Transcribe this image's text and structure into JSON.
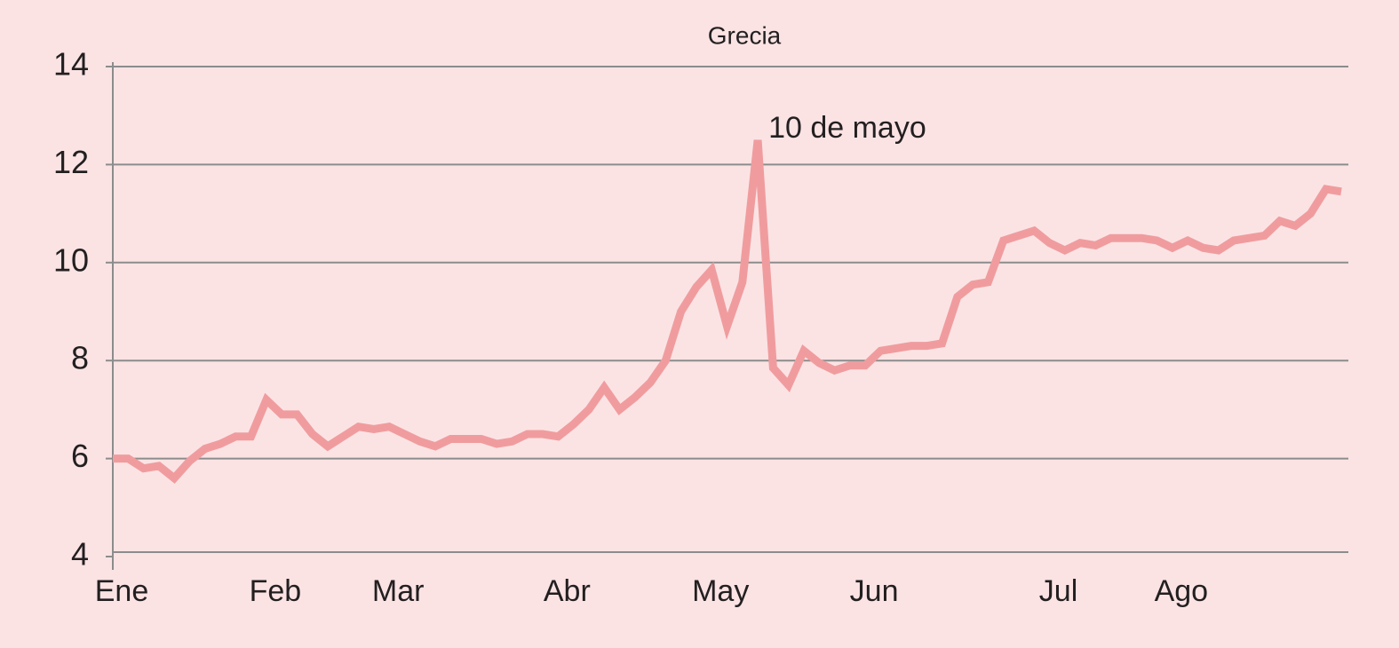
{
  "chart_data": {
    "type": "line",
    "title": "Grecia",
    "annotation": "10 de mayo",
    "categories": [
      "Ene",
      null,
      null,
      null,
      null,
      null,
      null,
      null,
      null,
      null,
      "Feb",
      null,
      null,
      null,
      null,
      null,
      null,
      null,
      "Mar",
      null,
      null,
      null,
      null,
      null,
      null,
      null,
      null,
      null,
      null,
      "Abr",
      null,
      null,
      null,
      null,
      null,
      null,
      null,
      null,
      null,
      "May",
      null,
      null,
      null,
      null,
      null,
      null,
      null,
      null,
      null,
      "Jun",
      null,
      null,
      null,
      null,
      null,
      null,
      null,
      null,
      null,
      null,
      null,
      "Jul",
      null,
      null,
      null,
      null,
      null,
      null,
      null,
      "Ago",
      null,
      null,
      null,
      null,
      null,
      null,
      null,
      null,
      null,
      null,
      null
    ],
    "series": [
      {
        "name": "Grecia",
        "color": "#f09c9e",
        "values": [
          6.0,
          6.0,
          5.8,
          5.85,
          5.6,
          5.95,
          6.2,
          6.3,
          6.45,
          6.45,
          7.2,
          6.9,
          6.9,
          6.5,
          6.25,
          6.45,
          6.65,
          6.6,
          6.65,
          6.5,
          6.35,
          6.25,
          6.4,
          6.4,
          6.4,
          6.3,
          6.35,
          6.5,
          6.5,
          6.45,
          6.7,
          7.0,
          7.45,
          7.0,
          7.25,
          7.55,
          8.0,
          9.0,
          9.5,
          9.85,
          8.7,
          9.6,
          12.5,
          7.85,
          7.5,
          8.2,
          7.95,
          7.8,
          7.9,
          7.9,
          8.2,
          8.25,
          8.3,
          8.3,
          8.35,
          9.3,
          9.55,
          9.6,
          10.45,
          10.55,
          10.65,
          10.4,
          10.25,
          10.4,
          10.35,
          10.5,
          10.5,
          10.5,
          10.45,
          10.3,
          10.45,
          10.3,
          10.25,
          10.45,
          10.5,
          10.55,
          10.85,
          10.75,
          11.0,
          11.5,
          11.45
        ]
      }
    ],
    "ylim": [
      4,
      14
    ],
    "yticks": [
      4,
      6,
      8,
      10,
      12,
      14
    ],
    "grid": true
  }
}
